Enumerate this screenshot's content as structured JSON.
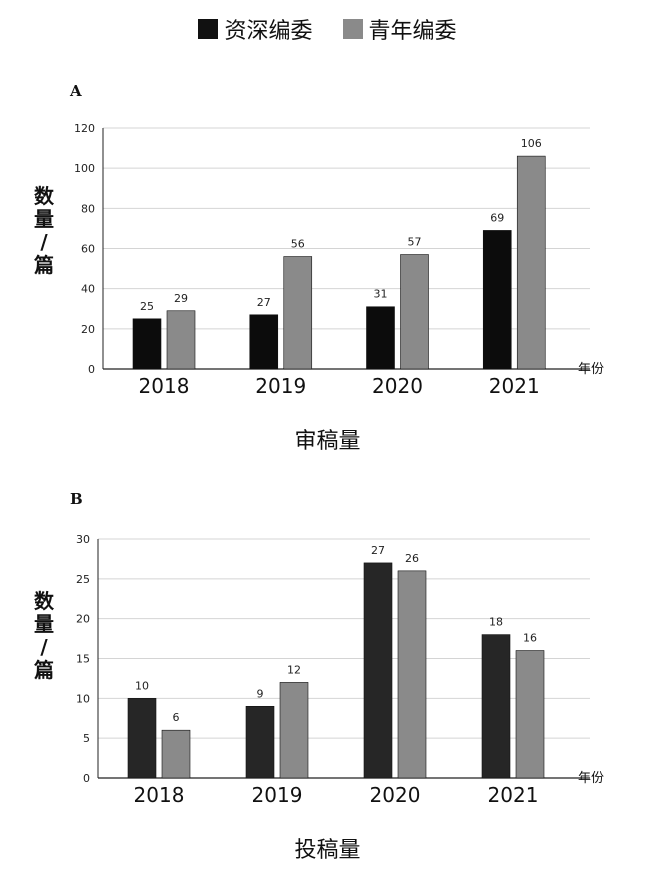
{
  "legend": [
    {
      "label": "资深编委",
      "color": "#111111"
    },
    {
      "label": "青年编委",
      "color": "#8a8a8a"
    }
  ],
  "colors": {
    "senior_a": "#0c0c0c",
    "senior_b": "#262626",
    "junior": "#8a8a8a",
    "grid": "#d4d4d4",
    "axis": "#222222"
  },
  "chart_data": [
    {
      "type": "bar",
      "panel": "A",
      "caption": "审稿量",
      "ylabel_chars": [
        "数",
        "量",
        "/",
        "篇"
      ],
      "xunit": "年份",
      "categories": [
        "2018",
        "2019",
        "2020",
        "2021"
      ],
      "ylim": [
        0,
        120
      ],
      "yticks": [
        0,
        20,
        40,
        60,
        80,
        100,
        120
      ],
      "grid": true,
      "legend_position": "top-center",
      "series": [
        {
          "name": "资深编委",
          "values": [
            25,
            27,
            31,
            69
          ]
        },
        {
          "name": "青年编委",
          "values": [
            29,
            56,
            57,
            106
          ]
        }
      ]
    },
    {
      "type": "bar",
      "panel": "B",
      "caption": "投稿量",
      "ylabel_chars": [
        "数",
        "量",
        "/",
        "篇"
      ],
      "xunit": "年份",
      "categories": [
        "2018",
        "2019",
        "2020",
        "2021"
      ],
      "ylim": [
        0,
        30
      ],
      "yticks": [
        0,
        5,
        10,
        15,
        20,
        25,
        30
      ],
      "grid": true,
      "legend_position": "top-center",
      "series": [
        {
          "name": "资深编委",
          "values": [
            10,
            9,
            27,
            18
          ]
        },
        {
          "name": "青年编委",
          "values": [
            6,
            12,
            26,
            16
          ]
        }
      ]
    }
  ]
}
